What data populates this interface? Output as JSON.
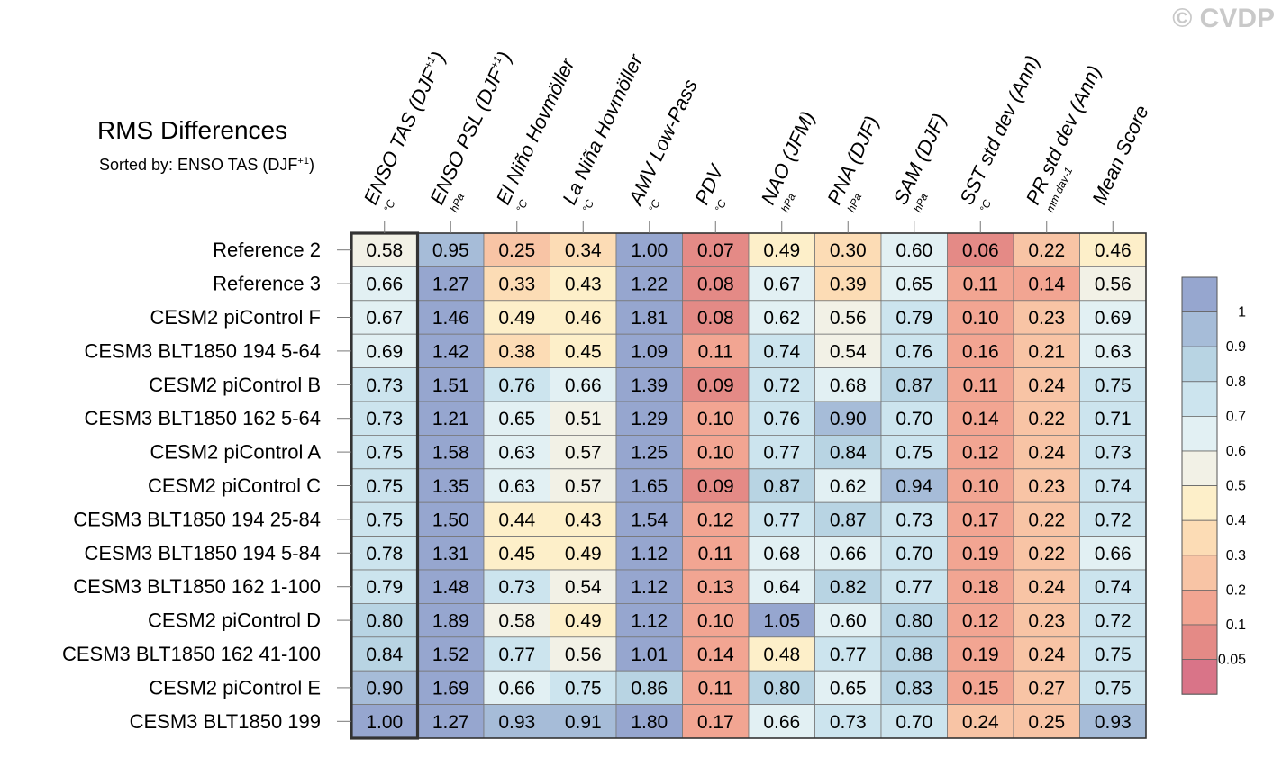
{
  "title": "RMS Differences",
  "subtitle": {
    "prefix": "Sorted by: ENSO TAS (DJF",
    "sup": "+1",
    "suffix": ")"
  },
  "watermark": "© CVDP",
  "colors": {
    "grid": "#777777",
    "outline": "#333333"
  },
  "chart_data": {
    "type": "heatmap",
    "title": "RMS Differences",
    "sorted_by": "ENSO TAS (DJF+1)",
    "highlighted_column": 0,
    "columns": [
      {
        "name": "ENSO TAS (DJF",
        "sup": "+1",
        "close": ")",
        "unit": "°C"
      },
      {
        "name": "ENSO PSL (DJF",
        "sup": "+1",
        "close": ")",
        "unit": "hPa"
      },
      {
        "name": "El Niño Hovmöller",
        "sup": "",
        "close": "",
        "unit": "°C"
      },
      {
        "name": "La Niña Hovmöller",
        "sup": "",
        "close": "",
        "unit": "°C"
      },
      {
        "name": "AMV Low-Pass",
        "sup": "",
        "close": "",
        "unit": "°C"
      },
      {
        "name": "PDV",
        "sup": "",
        "close": "",
        "unit": "°C"
      },
      {
        "name": "NAO (JFM)",
        "sup": "",
        "close": "",
        "unit": "hPa"
      },
      {
        "name": "PNA (DJF)",
        "sup": "",
        "close": "",
        "unit": "hPa"
      },
      {
        "name": "SAM (DJF)",
        "sup": "",
        "close": "",
        "unit": "hPa"
      },
      {
        "name": "SST std dev (Ann)",
        "sup": "",
        "close": "",
        "unit": "°C"
      },
      {
        "name": "PR std dev (Ann)",
        "sup": "",
        "close": "",
        "unit": "mm day-1"
      },
      {
        "name": "Mean Score",
        "sup": "",
        "close": "",
        "unit": ""
      }
    ],
    "rows": [
      "Reference 2",
      "Reference 3",
      "CESM2 piControl F",
      "CESM3 BLT1850 194 5-64",
      "CESM2 piControl B",
      "CESM3 BLT1850 162 5-64",
      "CESM2 piControl A",
      "CESM2 piControl C",
      "CESM3 BLT1850 194 25-84",
      "CESM3 BLT1850 194 5-84",
      "CESM3 BLT1850 162 1-100",
      "CESM2 piControl D",
      "CESM3 BLT1850 162 41-100",
      "CESM2 piControl E",
      "CESM3 BLT1850 199"
    ],
    "values": [
      [
        "0.58",
        "0.95",
        "0.25",
        "0.34",
        "1.00",
        "0.07",
        "0.49",
        "0.30",
        "0.60",
        "0.06",
        "0.22",
        "0.46"
      ],
      [
        "0.66",
        "1.27",
        "0.33",
        "0.43",
        "1.22",
        "0.08",
        "0.67",
        "0.39",
        "0.65",
        "0.11",
        "0.14",
        "0.56"
      ],
      [
        "0.67",
        "1.46",
        "0.49",
        "0.46",
        "1.81",
        "0.08",
        "0.62",
        "0.56",
        "0.79",
        "0.10",
        "0.23",
        "0.69"
      ],
      [
        "0.69",
        "1.42",
        "0.38",
        "0.45",
        "1.09",
        "0.11",
        "0.74",
        "0.54",
        "0.76",
        "0.16",
        "0.21",
        "0.63"
      ],
      [
        "0.73",
        "1.51",
        "0.76",
        "0.66",
        "1.39",
        "0.09",
        "0.72",
        "0.68",
        "0.87",
        "0.11",
        "0.24",
        "0.75"
      ],
      [
        "0.73",
        "1.21",
        "0.65",
        "0.51",
        "1.29",
        "0.10",
        "0.76",
        "0.90",
        "0.70",
        "0.14",
        "0.22",
        "0.71"
      ],
      [
        "0.75",
        "1.58",
        "0.63",
        "0.57",
        "1.25",
        "0.10",
        "0.77",
        "0.84",
        "0.75",
        "0.12",
        "0.24",
        "0.73"
      ],
      [
        "0.75",
        "1.35",
        "0.63",
        "0.57",
        "1.65",
        "0.09",
        "0.87",
        "0.62",
        "0.94",
        "0.10",
        "0.23",
        "0.74"
      ],
      [
        "0.75",
        "1.50",
        "0.44",
        "0.43",
        "1.54",
        "0.12",
        "0.77",
        "0.87",
        "0.73",
        "0.17",
        "0.22",
        "0.72"
      ],
      [
        "0.78",
        "1.31",
        "0.45",
        "0.49",
        "1.12",
        "0.11",
        "0.68",
        "0.66",
        "0.70",
        "0.19",
        "0.22",
        "0.66"
      ],
      [
        "0.79",
        "1.48",
        "0.73",
        "0.54",
        "1.12",
        "0.13",
        "0.64",
        "0.82",
        "0.77",
        "0.18",
        "0.24",
        "0.74"
      ],
      [
        "0.80",
        "1.89",
        "0.58",
        "0.49",
        "1.12",
        "0.10",
        "1.05",
        "0.60",
        "0.80",
        "0.12",
        "0.23",
        "0.72"
      ],
      [
        "0.84",
        "1.52",
        "0.77",
        "0.56",
        "1.01",
        "0.14",
        "0.48",
        "0.77",
        "0.88",
        "0.19",
        "0.24",
        "0.75"
      ],
      [
        "0.90",
        "1.69",
        "0.66",
        "0.75",
        "0.86",
        "0.11",
        "0.80",
        "0.65",
        "0.83",
        "0.15",
        "0.27",
        "0.75"
      ],
      [
        "1.00",
        "1.27",
        "0.93",
        "0.91",
        "1.80",
        "0.17",
        "0.66",
        "0.73",
        "0.70",
        "0.24",
        "0.25",
        "0.93"
      ]
    ],
    "colorbar": {
      "levels": [
        "1",
        "0.9",
        "0.8",
        "0.7",
        "0.6",
        "0.5",
        "0.4",
        "0.3",
        "0.2",
        "0.1",
        "0.05"
      ],
      "bins": [
        {
          "min": 1.0,
          "max": 99,
          "color": "#96A6CF"
        },
        {
          "min": 0.9,
          "max": 1.0,
          "color": "#A6BCD8"
        },
        {
          "min": 0.8,
          "max": 0.9,
          "color": "#B8D4E3"
        },
        {
          "min": 0.7,
          "max": 0.8,
          "color": "#CCE4EE"
        },
        {
          "min": 0.6,
          "max": 0.7,
          "color": "#E2F0F3"
        },
        {
          "min": 0.5,
          "max": 0.6,
          "color": "#F2F1E6"
        },
        {
          "min": 0.4,
          "max": 0.5,
          "color": "#FDEFC9"
        },
        {
          "min": 0.3,
          "max": 0.4,
          "color": "#FCDCB5"
        },
        {
          "min": 0.2,
          "max": 0.3,
          "color": "#F8C4A5"
        },
        {
          "min": 0.1,
          "max": 0.2,
          "color": "#F2A592"
        },
        {
          "min": 0.05,
          "max": 0.1,
          "color": "#E48A86"
        },
        {
          "min": 0,
          "max": 0.05,
          "color": "#D97488"
        }
      ]
    }
  }
}
